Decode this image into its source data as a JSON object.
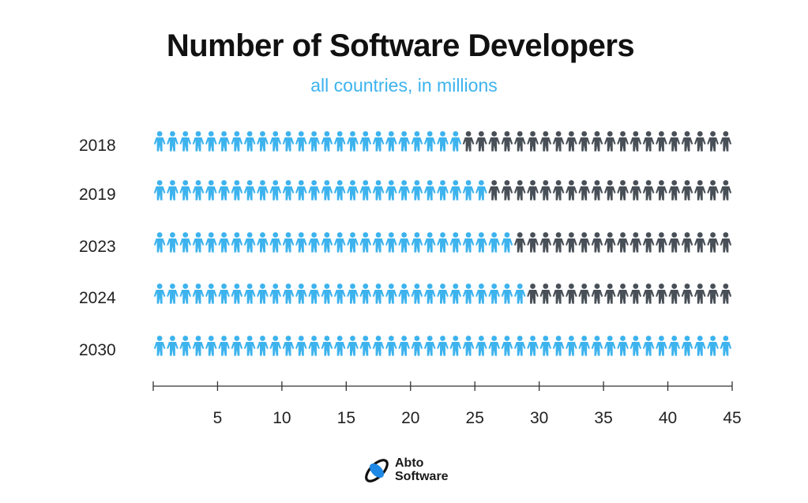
{
  "chart_data": {
    "type": "pictogram",
    "title": "Number of Software Developers",
    "subtitle": "all countries, in millions",
    "categories": [
      "2018",
      "2019",
      "2023",
      "2024",
      "2030"
    ],
    "values": [
      24,
      26,
      28,
      29,
      45
    ],
    "total_icons": 45,
    "unit_per_icon": 1,
    "x_ticks": [
      5,
      10,
      15,
      20,
      25,
      30,
      35,
      40,
      45
    ],
    "xlim": [
      0,
      45
    ],
    "grid": false,
    "legend": "none"
  },
  "colors": {
    "filled": "#3db3ee",
    "empty": "#484f57",
    "title": "#111111",
    "subtitle": "#3db3ee",
    "logo_blue": "#1e88e5"
  },
  "icon": "person-icon",
  "brand": {
    "name_line1": "Abto",
    "name_line2": "Software"
  }
}
